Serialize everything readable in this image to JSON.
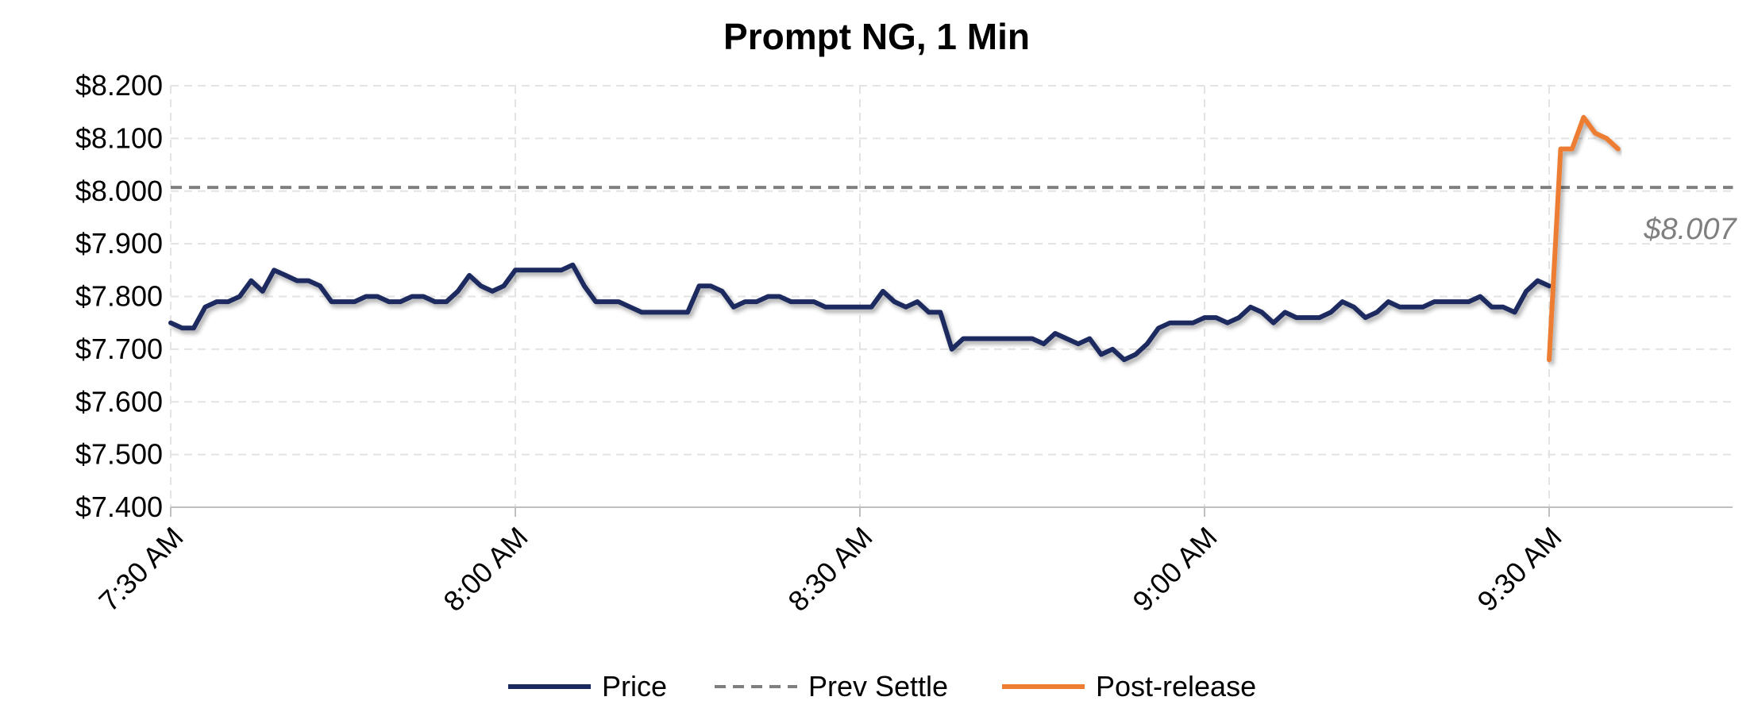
{
  "chart_data": {
    "type": "line",
    "title": "Prompt NG, 1 Min",
    "xlabel": "",
    "ylabel": "",
    "ylim": [
      7.4,
      8.2
    ],
    "y_ticks": [
      7.4,
      7.5,
      7.6,
      7.7,
      7.8,
      7.9,
      8.0,
      8.1,
      8.2
    ],
    "y_tick_labels": [
      "$7.400",
      "$7.500",
      "$7.600",
      "$7.700",
      "$7.800",
      "$7.900",
      "$8.000",
      "$8.100",
      "$8.200"
    ],
    "x_unit": "minutes after 7:30 AM",
    "xlim_minutes": [
      0,
      136
    ],
    "x_ticks_minutes": [
      0,
      30,
      60,
      90,
      120
    ],
    "x_tick_labels": [
      "7:30 AM",
      "8:00 AM",
      "8:30 AM",
      "9:00 AM",
      "9:30 AM"
    ],
    "grid": true,
    "legend_position": "bottom",
    "series": [
      {
        "name": "Price",
        "color": "#1b2a5e",
        "style": "solid",
        "x": [
          0,
          1,
          2,
          3,
          4,
          5,
          6,
          7,
          8,
          9,
          10,
          11,
          12,
          13,
          14,
          15,
          16,
          17,
          18,
          19,
          20,
          21,
          22,
          23,
          24,
          25,
          26,
          27,
          28,
          29,
          30,
          31,
          32,
          33,
          34,
          35,
          36,
          37,
          38,
          39,
          40,
          41,
          42,
          43,
          44,
          45,
          46,
          47,
          48,
          49,
          50,
          51,
          52,
          53,
          54,
          55,
          56,
          57,
          58,
          59,
          60,
          61,
          62,
          63,
          64,
          65,
          66,
          67,
          68,
          69,
          70,
          71,
          72,
          73,
          74,
          75,
          76,
          77,
          78,
          79,
          80,
          81,
          82,
          83,
          84,
          85,
          86,
          87,
          88,
          89,
          90,
          91,
          92,
          93,
          94,
          95,
          96,
          97,
          98,
          99,
          100,
          101,
          102,
          103,
          104,
          105,
          106,
          107,
          108,
          109,
          110,
          111,
          112,
          113,
          114,
          115,
          116,
          117,
          118,
          119,
          120
        ],
        "y": [
          7.75,
          7.74,
          7.74,
          7.78,
          7.79,
          7.79,
          7.8,
          7.83,
          7.81,
          7.85,
          7.84,
          7.83,
          7.83,
          7.82,
          7.79,
          7.79,
          7.79,
          7.8,
          7.8,
          7.79,
          7.79,
          7.8,
          7.8,
          7.79,
          7.79,
          7.81,
          7.84,
          7.82,
          7.81,
          7.82,
          7.85,
          7.85,
          7.85,
          7.85,
          7.85,
          7.86,
          7.82,
          7.79,
          7.79,
          7.79,
          7.78,
          7.77,
          7.77,
          7.77,
          7.77,
          7.77,
          7.82,
          7.82,
          7.81,
          7.78,
          7.79,
          7.79,
          7.8,
          7.8,
          7.79,
          7.79,
          7.79,
          7.78,
          7.78,
          7.78,
          7.78,
          7.78,
          7.81,
          7.79,
          7.78,
          7.79,
          7.77,
          7.77,
          7.7,
          7.72,
          7.72,
          7.72,
          7.72,
          7.72,
          7.72,
          7.72,
          7.71,
          7.73,
          7.72,
          7.71,
          7.72,
          7.69,
          7.7,
          7.68,
          7.69,
          7.71,
          7.74,
          7.75,
          7.75,
          7.75,
          7.76,
          7.76,
          7.75,
          7.76,
          7.78,
          7.77,
          7.75,
          7.77,
          7.76,
          7.76,
          7.76,
          7.77,
          7.79,
          7.78,
          7.76,
          7.77,
          7.79,
          7.78,
          7.78,
          7.78,
          7.79,
          7.79,
          7.79,
          7.79,
          7.8,
          7.78,
          7.78,
          7.77,
          7.81,
          7.83,
          7.82
        ]
      },
      {
        "name": "Prev Settle",
        "color": "#7f7f7f",
        "style": "dashed",
        "x": [
          0,
          136
        ],
        "y": [
          8.007,
          8.007
        ]
      },
      {
        "name": "Post-release",
        "color": "#ed7d31",
        "style": "solid",
        "x": [
          120,
          121,
          122,
          123,
          124,
          125,
          126
        ],
        "y": [
          7.68,
          8.08,
          8.08,
          8.14,
          8.11,
          8.1,
          8.08
        ]
      }
    ],
    "annotations": [
      {
        "text": "$8.007",
        "x_minutes": 132,
        "y": 7.93
      }
    ]
  }
}
